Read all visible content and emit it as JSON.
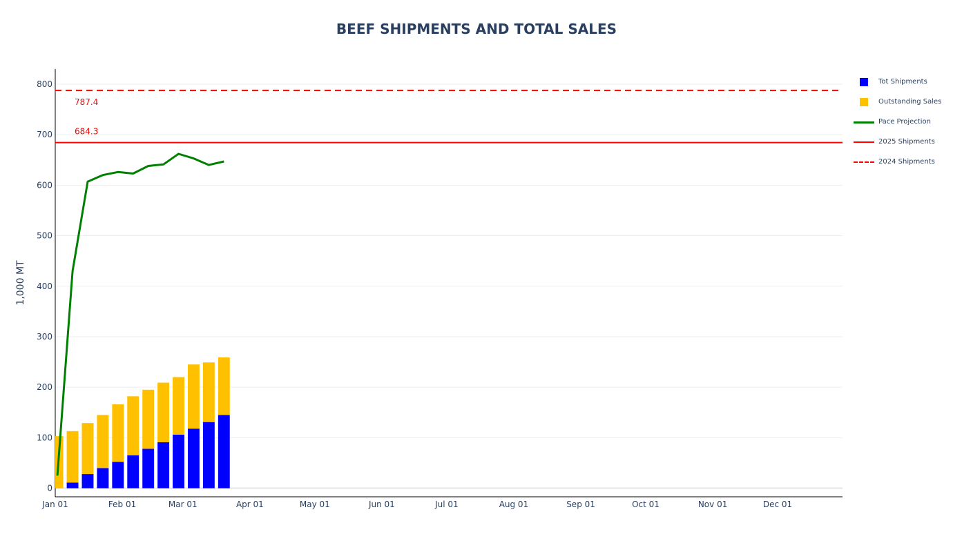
{
  "chart_data": {
    "type": "bar",
    "title": "BEEF SHIPMENTS AND TOTAL SALES",
    "ylabel": "1,000 MT",
    "xlabel": "",
    "ylim": [
      -17,
      830
    ],
    "xlim": [
      "2025-01-01",
      "2025-12-31"
    ],
    "y_ticks": [
      0,
      100,
      200,
      300,
      400,
      500,
      600,
      700,
      800
    ],
    "x_ticks": [
      {
        "date": "2025-01-01",
        "label": "Jan 01"
      },
      {
        "date": "2025-02-01",
        "label": "Feb 01"
      },
      {
        "date": "2025-03-01",
        "label": "Mar 01"
      },
      {
        "date": "2025-04-01",
        "label": "Apr 01"
      },
      {
        "date": "2025-05-01",
        "label": "May 01"
      },
      {
        "date": "2025-06-01",
        "label": "Jun 01"
      },
      {
        "date": "2025-07-01",
        "label": "Jul 01"
      },
      {
        "date": "2025-08-01",
        "label": "Aug 01"
      },
      {
        "date": "2025-09-01",
        "label": "Sep 01"
      },
      {
        "date": "2025-10-01",
        "label": "Oct 01"
      },
      {
        "date": "2025-11-01",
        "label": "Nov 01"
      },
      {
        "date": "2025-12-01",
        "label": "Dec 01"
      }
    ],
    "grid": true,
    "legend_position": "right",
    "barmode": "stack",
    "x": [
      "2025-01-02",
      "2025-01-09",
      "2025-01-16",
      "2025-01-23",
      "2025-01-30",
      "2025-02-06",
      "2025-02-13",
      "2025-02-20",
      "2025-02-27",
      "2025-03-06",
      "2025-03-13",
      "2025-03-20"
    ],
    "series": [
      {
        "name": "Tot Shipments",
        "type": "bar",
        "color": "#0000ff",
        "values": [
          0,
          11,
          28,
          40,
          52,
          65,
          78,
          91,
          106,
          118,
          131,
          145
        ]
      },
      {
        "name": "Outstanding Sales",
        "type": "bar",
        "color": "#ffc000",
        "values": [
          103,
          102,
          101,
          105,
          114,
          117,
          117,
          118,
          114,
          127,
          118,
          114
        ]
      },
      {
        "name": "Pace Projection",
        "type": "line",
        "color": "#008000",
        "values": [
          25,
          430,
          607,
          620,
          626,
          623,
          638,
          641,
          662,
          653,
          640,
          647
        ]
      },
      {
        "name": "2025 Shipments",
        "type": "hline",
        "color": "#ff0000",
        "dash": "solid",
        "value": 684.3,
        "label": "684.3"
      },
      {
        "name": "2024 Shipments",
        "type": "hline",
        "color": "#ff0000",
        "dash": "dash",
        "value": 787.4,
        "label": "787.4"
      }
    ]
  }
}
